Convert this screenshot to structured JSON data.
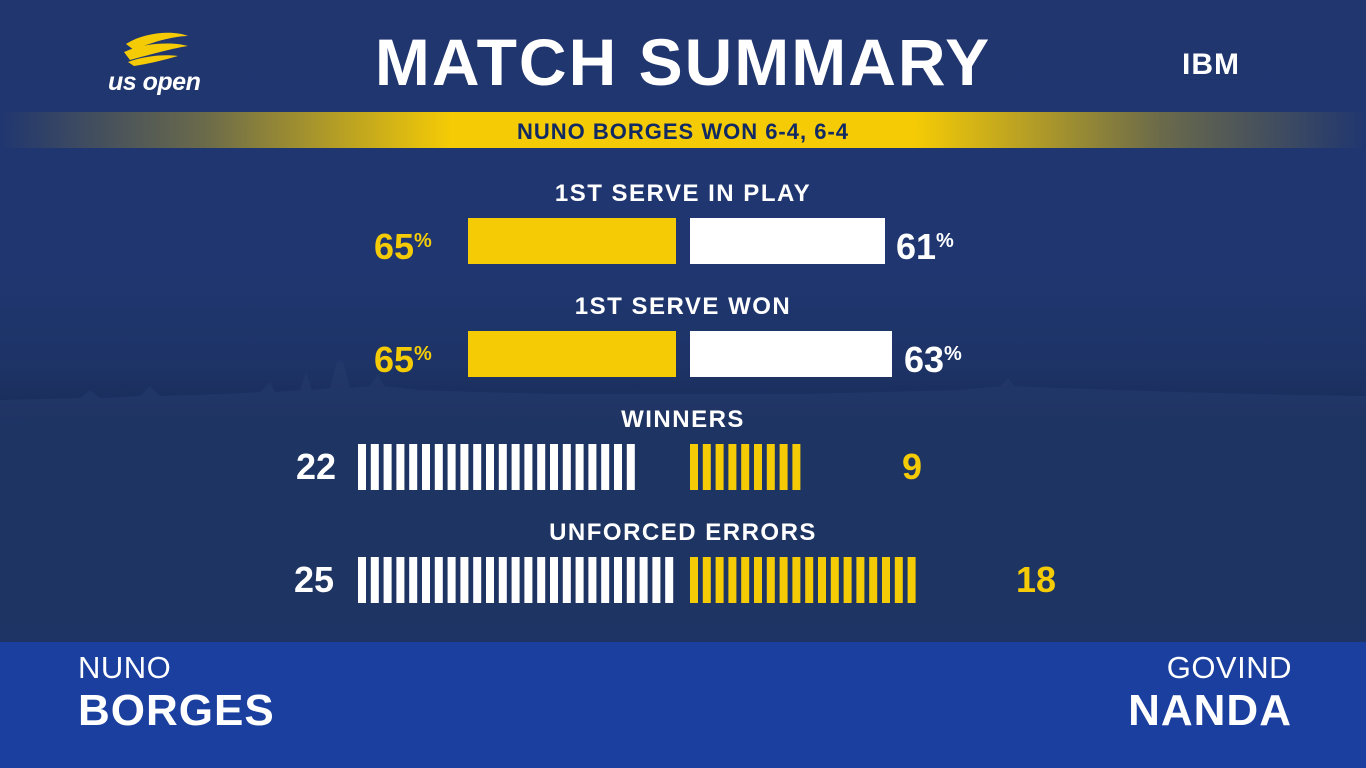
{
  "brand": {
    "logo_text": "us open",
    "sponsor": "IBM"
  },
  "title": "MATCH SUMMARY",
  "result": "NUNO BORGES WON 6-4, 6-4",
  "stats": [
    {
      "label": "1ST SERVE IN PLAY",
      "left": "65",
      "right": "61",
      "unit": "%",
      "left_value": 65,
      "right_value": 61,
      "type": "bar"
    },
    {
      "label": "1ST SERVE WON",
      "left": "65",
      "right": "63",
      "unit": "%",
      "left_value": 65,
      "right_value": 63,
      "type": "bar"
    },
    {
      "label": "WINNERS",
      "left": "22",
      "right": "9",
      "left_value": 22,
      "right_value": 9,
      "type": "ticks"
    },
    {
      "label": "UNFORCED ERRORS",
      "left": "25",
      "right": "18",
      "left_value": 25,
      "right_value": 18,
      "type": "ticks"
    }
  ],
  "players": {
    "left": {
      "first": "NUNO",
      "last": "BORGES"
    },
    "right": {
      "first": "GOVIND",
      "last": "NANDA"
    }
  },
  "colors": {
    "yellow": "#f5cb05",
    "white": "#ffffff",
    "navy": "#1f3670",
    "band": "#1a3f9f"
  }
}
